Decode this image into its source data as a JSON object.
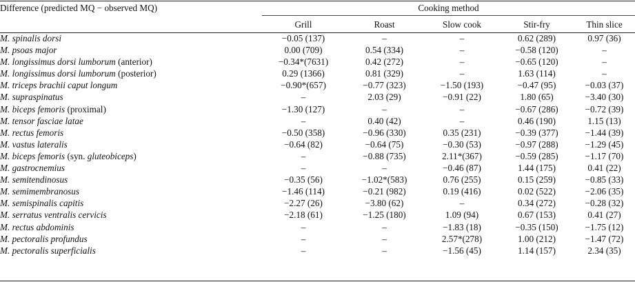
{
  "caption": "Difference (predicted MQ − observed MQ)",
  "group_header": "Cooking method",
  "columns": [
    "Grill",
    "Roast",
    "Slow cook",
    "Stir-fry",
    "Thin slice"
  ],
  "rows": [
    {
      "muscle": "M. spinalis dorsi",
      "suffix": "",
      "values": [
        "−0.05 (137)",
        "–",
        "–",
        "0.62 (289)",
        "0.97 (36)"
      ]
    },
    {
      "muscle": "M. psoas major",
      "suffix": "",
      "values": [
        "0.00 (709)",
        "0.54 (334)",
        "–",
        "−0.58 (120)",
        "–"
      ]
    },
    {
      "muscle": "M. longissimus dorsi lumborum",
      "suffix": " (anterior)",
      "values": [
        "−0.34*(7631)",
        "0.42 (272)",
        "–",
        "−0.65 (120)",
        "–"
      ]
    },
    {
      "muscle": "M. longissimus dorsi lumborum",
      "suffix": " (posterior)",
      "values": [
        "0.29 (1366)",
        "0.81 (329)",
        "–",
        "1.63 (114)",
        "–"
      ]
    },
    {
      "muscle": "M. triceps brachii caput longum",
      "suffix": "",
      "values": [
        "−0.90*(657)",
        "−0.77 (323)",
        "−1.50 (193)",
        "−0.47 (95)",
        "−0.03 (37)"
      ]
    },
    {
      "muscle": "M. supraspinatus",
      "suffix": "",
      "values": [
        "–",
        "2.03 (29)",
        "−0.91 (22)",
        "1.80 (65)",
        "−3.40 (30)"
      ]
    },
    {
      "muscle": "M. biceps femoris",
      "suffix": " (proximal)",
      "values": [
        "−1.30 (127)",
        "–",
        "–",
        "−0.67 (286)",
        "−0.72 (39)"
      ]
    },
    {
      "muscle": "M. tensor fasciae latae",
      "suffix": "",
      "values": [
        "–",
        "0.40 (42)",
        "–",
        "0.46 (190)",
        "1.15 (13)"
      ]
    },
    {
      "muscle": "M. rectus femoris",
      "suffix": "",
      "values": [
        "−0.50 (358)",
        "−0.96 (330)",
        "0.35 (231)",
        "−0.39 (377)",
        "−1.44 (39)"
      ]
    },
    {
      "muscle": "M. vastus lateralis",
      "suffix": "",
      "values": [
        "−0.64 (82)",
        "−0.64 (75)",
        "−0.30 (53)",
        "−0.97 (288)",
        "−1.29 (45)"
      ]
    },
    {
      "muscle": "M. biceps femoris",
      "suffix": " (syn. ",
      "suffix_italic": "gluteobiceps",
      "suffix_end": ")",
      "values": [
        "–",
        "−0.88 (735)",
        "2.11*(367)",
        "−0.59 (285)",
        "−1.17 (70)"
      ]
    },
    {
      "muscle": "M. gastrocnemius",
      "suffix": "",
      "values": [
        "–",
        "–",
        "−0.46 (87)",
        "1.44 (175)",
        "0.41 (22)"
      ]
    },
    {
      "muscle": "M. semitendinosus",
      "suffix": "",
      "values": [
        "−0.35 (56)",
        "−1.02*(583)",
        "0.76 (255)",
        "0.15 (259)",
        "−0.85 (33)"
      ]
    },
    {
      "muscle": "M. semimembranosus",
      "suffix": "",
      "values": [
        "−1.46 (114)",
        "−0.21 (982)",
        "0.19 (416)",
        "0.02 (522)",
        "−2.06 (35)"
      ]
    },
    {
      "muscle": "M. semispinalis capitis",
      "suffix": "",
      "values": [
        "−2.27 (26)",
        "−3.80 (62)",
        "–",
        "0.34 (272)",
        "−0.28 (32)"
      ]
    },
    {
      "muscle": "M. serratus ventralis cervicis",
      "suffix": "",
      "values": [
        "−2.18 (61)",
        "−1.25 (180)",
        "1.09 (94)",
        "0.67 (153)",
        "0.41 (27)"
      ]
    },
    {
      "muscle": "M. rectus abdominis",
      "suffix": "",
      "values": [
        "–",
        "–",
        "−1.83 (18)",
        "−0.35 (150)",
        "−1.75 (12)"
      ]
    },
    {
      "muscle": "M. pectoralis profundus",
      "suffix": "",
      "values": [
        "–",
        "–",
        "2.57*(278)",
        "1.00 (212)",
        "−1.47 (72)"
      ]
    },
    {
      "muscle": "M. pectoralis superficialis",
      "suffix": "",
      "values": [
        "–",
        "–",
        "−1.56 (45)",
        "1.14 (157)",
        "2.34 (35)"
      ]
    }
  ]
}
